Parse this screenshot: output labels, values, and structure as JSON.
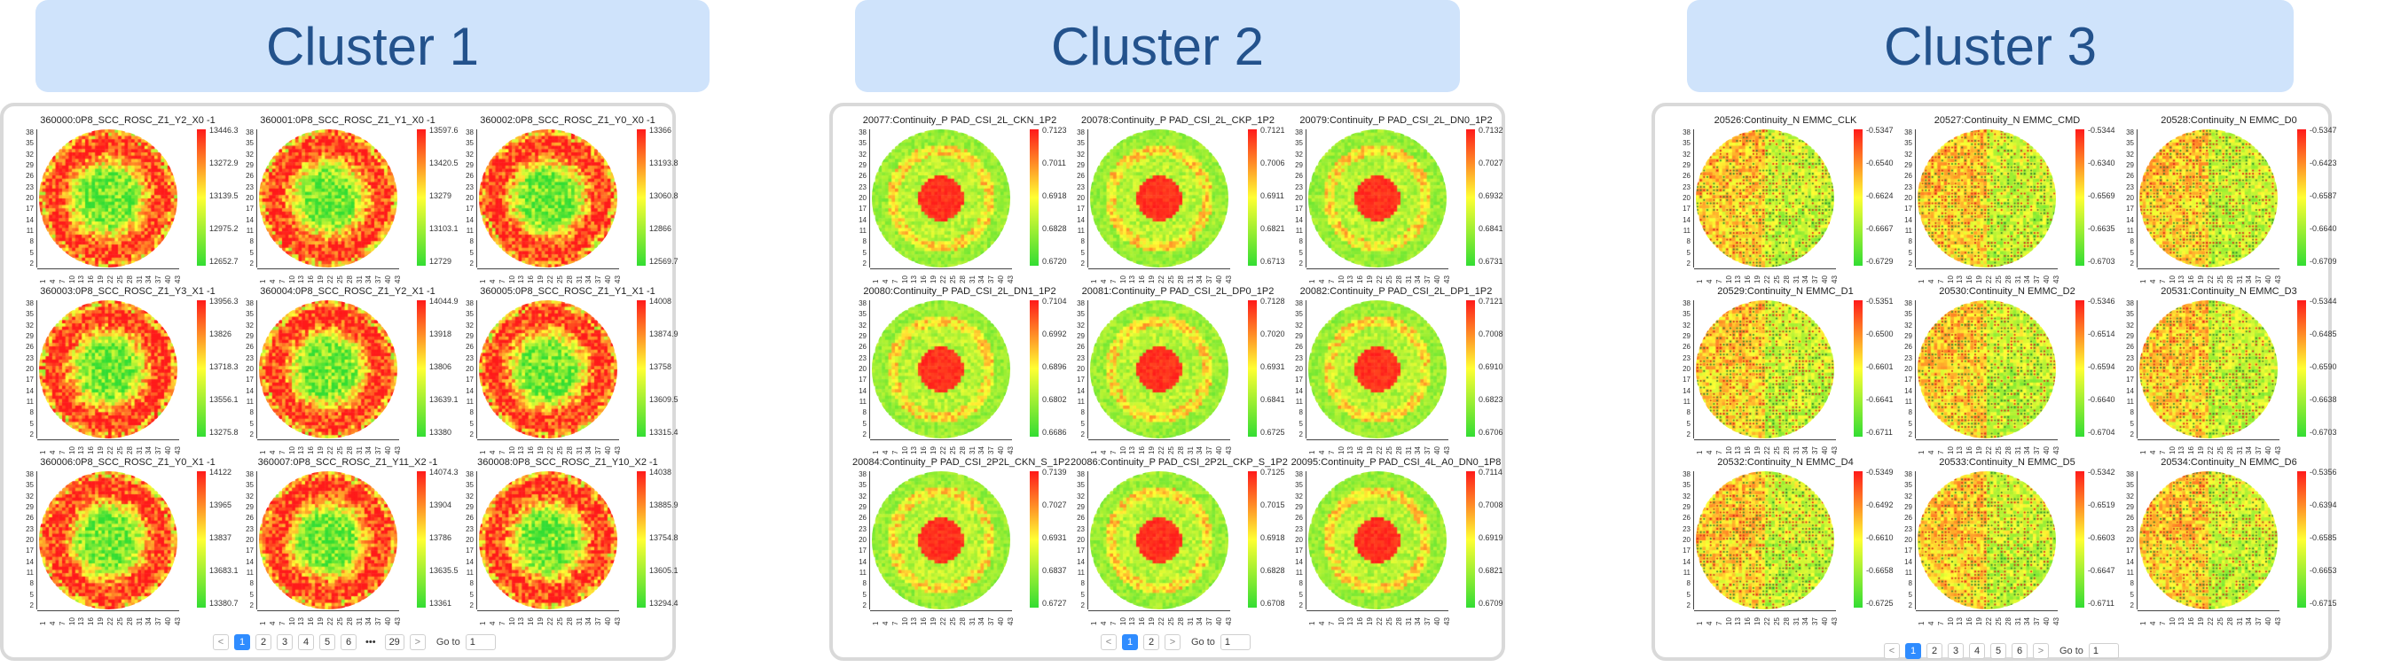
{
  "clusters": [
    {
      "title": "Cluster 1",
      "wafers": [
        {
          "title": "360000:0P8_SCC_ROSC_Z1_Y2_X0 -1",
          "colorbar": [
            "13446.3",
            "13272.9",
            "13139.5",
            "12975.2",
            "12652.7"
          ]
        },
        {
          "title": "360001:0P8_SCC_ROSC_Z1_Y1_X0 -1",
          "colorbar": [
            "13597.6",
            "13420.5",
            "13279",
            "13103.1",
            "12729"
          ]
        },
        {
          "title": "360002:0P8_SCC_ROSC_Z1_Y0_X0 -1",
          "colorbar": [
            "13366",
            "13193.8",
            "13060.8",
            "12866",
            "12569.7"
          ]
        },
        {
          "title": "360003:0P8_SCC_ROSC_Z1_Y3_X1 -1",
          "colorbar": [
            "13956.3",
            "13826",
            "13718.3",
            "13556.1",
            "13275.8"
          ]
        },
        {
          "title": "360004:0P8_SCC_ROSC_Z1_Y2_X1 -1",
          "colorbar": [
            "14044.9",
            "13918",
            "13806",
            "13639.1",
            "13380"
          ]
        },
        {
          "title": "360005:0P8_SCC_ROSC_Z1_Y1_X1 -1",
          "colorbar": [
            "14008",
            "13874.9",
            "13758",
            "13609.5",
            "13315.4"
          ]
        },
        {
          "title": "360006:0P8_SCC_ROSC_Z1_Y0_X1 -1",
          "colorbar": [
            "14122",
            "13965",
            "13837",
            "13683.1",
            "13380.7"
          ]
        },
        {
          "title": "360007:0P8_SCC_ROSC_Z1_Y11_X2 -1",
          "colorbar": [
            "14074.3",
            "13904",
            "13786",
            "13635.5",
            "13361"
          ]
        },
        {
          "title": "360008:0P8_SCC_ROSC_Z1_Y10_X2 -1",
          "colorbar": [
            "14038",
            "13885.9",
            "13754.8",
            "13605.1",
            "13294.4"
          ]
        }
      ],
      "pager": {
        "prev": "<",
        "pages": [
          "1",
          "2",
          "3",
          "4",
          "5",
          "6",
          "•••",
          "29"
        ],
        "next": ">",
        "goto_label": "Go to",
        "goto_value": "1"
      }
    },
    {
      "title": "Cluster 2",
      "wafers": [
        {
          "title": "20077:Continuity_P PAD_CSI_2L_CKN_1P2",
          "colorbar": [
            "0.7123",
            "0.7011",
            "0.6918",
            "0.6828",
            "0.6720"
          ]
        },
        {
          "title": "20078:Continuity_P PAD_CSI_2L_CKP_1P2",
          "colorbar": [
            "0.7121",
            "0.7006",
            "0.6911",
            "0.6821",
            "0.6713"
          ]
        },
        {
          "title": "20079:Continuity_P PAD_CSI_2L_DN0_1P2",
          "colorbar": [
            "0.7132",
            "0.7027",
            "0.6932",
            "0.6841",
            "0.6731"
          ]
        },
        {
          "title": "20080:Continuity_P PAD_CSI_2L_DN1_1P2",
          "colorbar": [
            "0.7104",
            "0.6992",
            "0.6896",
            "0.6802",
            "0.6686"
          ]
        },
        {
          "title": "20081:Continuity_P PAD_CSI_2L_DP0_1P2",
          "colorbar": [
            "0.7128",
            "0.7020",
            "0.6931",
            "0.6841",
            "0.6725"
          ]
        },
        {
          "title": "20082:Continuity_P PAD_CSI_2L_DP1_1P2",
          "colorbar": [
            "0.7121",
            "0.7008",
            "0.6910",
            "0.6823",
            "0.6706"
          ]
        },
        {
          "title": "20084:Continuity_P PAD_CSI_2P2L_CKN_S_1P2",
          "colorbar": [
            "0.7139",
            "0.7027",
            "0.6931",
            "0.6837",
            "0.6727"
          ]
        },
        {
          "title": "20086:Continuity_P PAD_CSI_2P2L_CKP_S_1P2",
          "colorbar": [
            "0.7125",
            "0.7015",
            "0.6918",
            "0.6828",
            "0.6708"
          ]
        },
        {
          "title": "20095:Continuity_P PAD_CSI_4L_A0_DN0_1P8",
          "colorbar": [
            "0.7114",
            "0.7008",
            "0.6919",
            "0.6821",
            "0.6709"
          ]
        }
      ],
      "pager": {
        "prev": "<",
        "pages": [
          "1",
          "2"
        ],
        "next": ">",
        "goto_label": "Go to",
        "goto_value": "1"
      }
    },
    {
      "title": "Cluster 3",
      "wafers": [
        {
          "title": "20526:Continuity_N EMMC_CLK",
          "colorbar": [
            "-0.5347",
            "-0.6540",
            "-0.6624",
            "-0.6667",
            "-0.6729"
          ]
        },
        {
          "title": "20527:Continuity_N EMMC_CMD",
          "colorbar": [
            "-0.5344",
            "-0.6340",
            "-0.6569",
            "-0.6635",
            "-0.6703"
          ]
        },
        {
          "title": "20528:Continuity_N EMMC_D0",
          "colorbar": [
            "-0.5347",
            "-0.6423",
            "-0.6587",
            "-0.6640",
            "-0.6709"
          ]
        },
        {
          "title": "20529:Continuity_N EMMC_D1",
          "colorbar": [
            "-0.5351",
            "-0.6500",
            "-0.6601",
            "-0.6641",
            "-0.6711"
          ]
        },
        {
          "title": "20530:Continuity_N EMMC_D2",
          "colorbar": [
            "-0.5346",
            "-0.6514",
            "-0.6594",
            "-0.6640",
            "-0.6704"
          ]
        },
        {
          "title": "20531:Continuity_N EMMC_D3",
          "colorbar": [
            "-0.5344",
            "-0.6485",
            "-0.6590",
            "-0.6638",
            "-0.6703"
          ]
        },
        {
          "title": "20532:Continuity_N EMMC_D4",
          "colorbar": [
            "-0.5349",
            "-0.6492",
            "-0.6610",
            "-0.6658",
            "-0.6725"
          ]
        },
        {
          "title": "20533:Continuity_N EMMC_D5",
          "colorbar": [
            "-0.5342",
            "-0.6519",
            "-0.6603",
            "-0.6647",
            "-0.6711"
          ]
        },
        {
          "title": "20534:Continuity_N EMMC_D6",
          "colorbar": [
            "-0.5356",
            "-0.6394",
            "-0.6585",
            "-0.6653",
            "-0.6715"
          ]
        }
      ],
      "pager": {
        "prev": "<",
        "pages": [
          "1",
          "2",
          "3",
          "4",
          "5",
          "6"
        ],
        "next": ">",
        "goto_label": "Go to",
        "goto_value": "1"
      }
    }
  ],
  "axes": {
    "y_ticks": [
      "38",
      "35",
      "32",
      "29",
      "26",
      "23",
      "20",
      "17",
      "14",
      "11",
      "8",
      "5",
      "2"
    ],
    "x_ticks": [
      "1",
      "4",
      "7",
      "10",
      "13",
      "16",
      "19",
      "22",
      "25",
      "28",
      "31",
      "34",
      "37",
      "40",
      "43"
    ]
  },
  "colors": {
    "header_bg": "#cfe3fb",
    "header_text": "#23528c",
    "scale_high": "#ff1a1a",
    "scale_mid": "#ffff33",
    "scale_low": "#33dd33",
    "pager_active": "#2f8cff"
  }
}
